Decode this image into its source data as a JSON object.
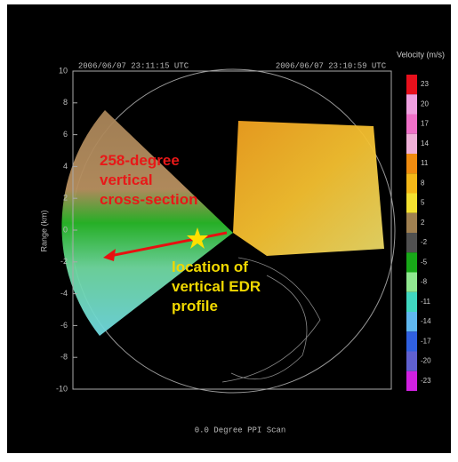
{
  "chart_data": {
    "type": "ppi",
    "left_time": "2006/06/07 23:11:15 UTC",
    "right_time": "2006/06/07 23:10:59 UTC",
    "y_label": "Range (km)",
    "ylim": [
      -10,
      10
    ],
    "yticks": [
      10,
      8,
      6,
      4,
      2,
      0,
      -2,
      -4,
      -6,
      -8,
      -10
    ],
    "footer": "0.0 Degree PPI Scan",
    "colorbar": {
      "title": "Velocity (m/s)",
      "ticks": [
        23,
        20,
        17,
        14,
        11,
        8,
        5,
        2,
        -2,
        -5,
        -8,
        -11,
        -14,
        -17,
        -20,
        -23
      ],
      "colors": [
        "#e8101c",
        "#f0a0e0",
        "#f070c8",
        "#f0b0d8",
        "#f08c10",
        "#f4b818",
        "#f4e030",
        "#a08050",
        "#505050",
        "#18a818",
        "#90e890",
        "#40d8c0",
        "#60b8f0",
        "#3060e0",
        "#6060d0",
        "#d020e0"
      ]
    },
    "annotations": [
      "258-degree vertical cross-section",
      "location of vertical EDR profile"
    ]
  }
}
